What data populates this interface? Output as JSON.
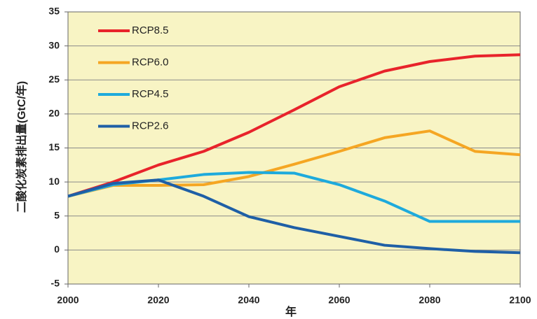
{
  "chart_data": {
    "type": "line",
    "x_label": "年",
    "y_label": "二酸化炭素排出量(GtC/年)",
    "x": [
      2000,
      2010,
      2020,
      2030,
      2040,
      2050,
      2060,
      2070,
      2080,
      2090,
      2100
    ],
    "series": [
      {
        "name": "RCP8.5",
        "color": "#e8232b",
        "values": [
          7.9,
          10,
          12.5,
          14.5,
          17.3,
          20.6,
          24,
          26.3,
          27.7,
          28.5,
          28.7
        ]
      },
      {
        "name": "RCP6.0",
        "color": "#f5a623",
        "values": [
          7.9,
          9.5,
          9.5,
          9.6,
          10.8,
          12.6,
          14.5,
          16.5,
          17.5,
          14.5,
          14.0
        ]
      },
      {
        "name": "RCP4.5",
        "color": "#1eaadc",
        "values": [
          7.9,
          9.6,
          10.3,
          11.1,
          11.4,
          11.3,
          9.6,
          7.2,
          4.2,
          4.2,
          4.2
        ]
      },
      {
        "name": "RCP2.6",
        "color": "#1f5fa6",
        "values": [
          7.9,
          9.8,
          10.3,
          7.9,
          4.9,
          3.3,
          2.0,
          0.7,
          0.2,
          -0.2,
          -0.4
        ]
      }
    ],
    "xlim": [
      2000,
      2100
    ],
    "xticks": [
      2000,
      2020,
      2040,
      2060,
      2080,
      2100
    ],
    "ylim": [
      -5,
      35
    ],
    "yticks": [
      -5,
      0,
      5,
      10,
      15,
      20,
      25,
      30,
      35
    ],
    "grid": true,
    "legend": "upper left",
    "background": "#f8f4c4"
  }
}
